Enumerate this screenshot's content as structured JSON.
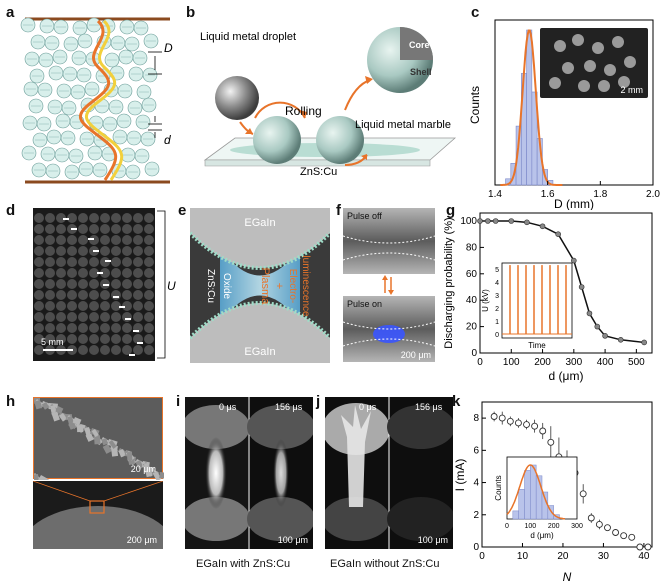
{
  "panel_labels": {
    "a": "a",
    "b": "b",
    "c": "c",
    "d": "d",
    "e": "e",
    "f": "f",
    "g": "g",
    "h": "h",
    "i": "i",
    "j": "j",
    "k": "k"
  },
  "panel_a": {
    "D": "D",
    "d": "d"
  },
  "panel_b": {
    "droplet": "Liquid metal droplet",
    "rolling": "Rolling",
    "marble": "Liquid metal marble",
    "core": "Core",
    "shell": "Shell",
    "substrate": "ZnS:Cu"
  },
  "panel_c": {
    "scale": "2 mm"
  },
  "panel_d": {
    "scale": "5 mm",
    "U": "U"
  },
  "panel_e": {
    "top": "EGaIn",
    "bottom": "EGaIn",
    "zns": "ZnS:Cu",
    "oxide": "Oxide",
    "plasma": "Plasma",
    "plus": "+",
    "el1": "Electro-",
    "el2": "luminescence"
  },
  "panel_f": {
    "off": "Pulse off",
    "on": "Pulse on",
    "scale": "200 μm"
  },
  "panel_h": {
    "scale_top": "20 μm",
    "scale_bottom": "200 μm"
  },
  "panel_i": {
    "t0": "0 μs",
    "t1": "156 μs",
    "scale": "100 μm",
    "caption": "EGaIn with ZnS:Cu"
  },
  "panel_j": {
    "t0": "0 μs",
    "t1": "156 μs",
    "scale": "100 μm",
    "caption": "EGaIn without ZnS:Cu"
  },
  "chart_data": [
    {
      "panel": "c",
      "type": "bar",
      "xlabel": "D (mm)",
      "ylabel": "Counts",
      "xlim": [
        1.4,
        2.0
      ],
      "xticks": [
        "1.4",
        "1.6",
        "1.8",
        "2.0"
      ],
      "bins_x": [
        1.45,
        1.47,
        1.49,
        1.51,
        1.53,
        1.55,
        1.57,
        1.59,
        1.61
      ],
      "values": [
        0.04,
        0.14,
        0.38,
        0.72,
        1.0,
        0.6,
        0.3,
        0.1,
        0.03
      ],
      "fit": "gaussian",
      "fit_center": 1.53,
      "fit_sigma": 0.025
    },
    {
      "panel": "g",
      "type": "line",
      "xlabel": "d (μm)",
      "ylabel": "Discharging probability (%)",
      "xlim": [
        0,
        550
      ],
      "ylim": [
        0,
        100
      ],
      "xticks": [
        "0",
        "100",
        "200",
        "300",
        "400",
        "500"
      ],
      "yticks": [
        "0",
        "20",
        "40",
        "60",
        "80",
        "100"
      ],
      "x": [
        0,
        25,
        50,
        100,
        150,
        200,
        250,
        300,
        325,
        350,
        375,
        400,
        450,
        525
      ],
      "y": [
        100,
        100,
        100,
        100,
        99,
        96,
        90,
        70,
        50,
        30,
        20,
        13,
        10,
        8
      ],
      "inset": {
        "xlabel": "Time",
        "ylabel": "U (kV)",
        "yticks": [
          "0",
          "1",
          "2",
          "3",
          "4",
          "5"
        ],
        "pulse_count": 8,
        "pulse_kv": 5.3
      }
    },
    {
      "panel": "k",
      "type": "scatter",
      "xlabel": "N",
      "ylabel": "I (mA)",
      "xlim": [
        0,
        42
      ],
      "ylim": [
        0,
        9
      ],
      "xticks": [
        "0",
        "10",
        "20",
        "30",
        "40"
      ],
      "yticks": [
        "0",
        "2",
        "4",
        "6",
        "8"
      ],
      "x": [
        3,
        5,
        7,
        9,
        11,
        13,
        15,
        17,
        19,
        21,
        23,
        25,
        27,
        29,
        31,
        33,
        35,
        37,
        39,
        41
      ],
      "y": [
        8.1,
        8.0,
        7.8,
        7.7,
        7.6,
        7.5,
        7.2,
        6.5,
        5.6,
        5.0,
        4.6,
        3.3,
        1.8,
        1.4,
        1.2,
        0.9,
        0.7,
        0.6,
        0.0,
        0.0
      ],
      "err": [
        0.3,
        0.4,
        0.3,
        0.3,
        0.3,
        0.4,
        0.5,
        1.0,
        1.2,
        1.0,
        1.0,
        0.6,
        0.3,
        0.3,
        0.2,
        0.2,
        0.2,
        0.2,
        0.1,
        0.1
      ],
      "inset": {
        "xlabel": "d (μm)",
        "ylabel": "Counts",
        "xticks": [
          "0",
          "100",
          "200",
          "300"
        ],
        "values": [
          0.15,
          0.55,
          0.9,
          1.0,
          0.8,
          0.5,
          0.25,
          0.08
        ],
        "bins_x": [
          37.5,
          62.5,
          87.5,
          112.5,
          137.5,
          162.5,
          187.5,
          212.5
        ]
      }
    }
  ],
  "colors": {
    "orange": "#e8742a",
    "bar": "#b9c3ea",
    "bar_edge": "#7b87c8",
    "teal": "#bfe3dd",
    "copper": "#8b4a1f"
  }
}
